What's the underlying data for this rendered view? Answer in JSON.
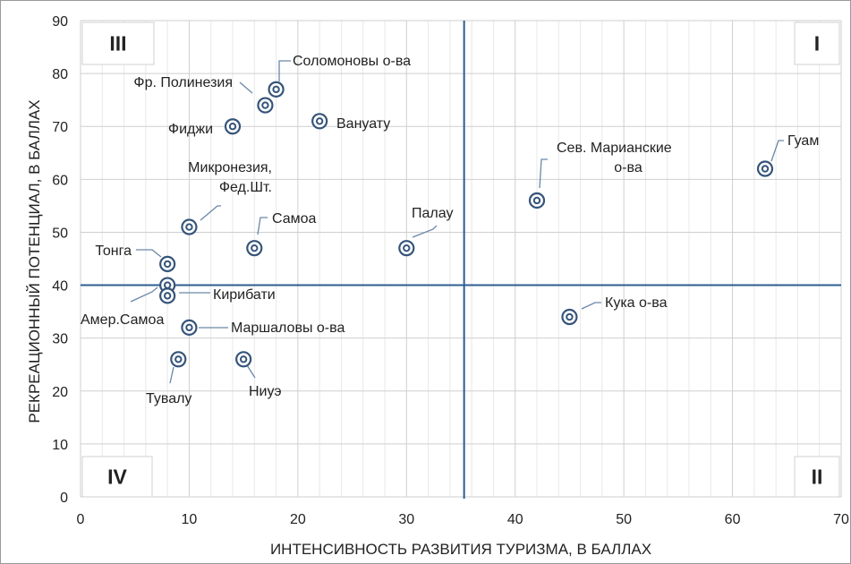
{
  "chart_data": {
    "type": "scatter",
    "title": "",
    "xlabel": "ИНТЕНСИВНОСТЬ РАЗВИТИЯ ТУРИЗМА, В БАЛЛАХ",
    "ylabel": "РЕКРЕАЦИОННЫЙ ПОТЕНЦИАЛ, В БАЛЛАХ",
    "xlim": [
      0,
      70
    ],
    "ylim": [
      0,
      90
    ],
    "x_ticks": [
      "0",
      "10",
      "20",
      "30",
      "40",
      "50",
      "60",
      "70"
    ],
    "y_ticks": [
      "0",
      "10",
      "20",
      "30",
      "40",
      "50",
      "60",
      "70",
      "80",
      "90"
    ],
    "grid": true,
    "quadrant_lines": {
      "x": 35.3,
      "y": 40
    },
    "quadrant_labels": [
      "I",
      "II",
      "III",
      "IV"
    ],
    "points": [
      {
        "label": "Соломоновы о-ва",
        "x": 18,
        "y": 77
      },
      {
        "label": "Фр. Полинезия",
        "x": 17,
        "y": 74
      },
      {
        "label": "Фиджи",
        "x": 14,
        "y": 70
      },
      {
        "label": "Вануату",
        "x": 22,
        "y": 71
      },
      {
        "label": "Микронезия, Фед.Шт.",
        "x": 10,
        "y": 51
      },
      {
        "label": "Самоа",
        "x": 16,
        "y": 47
      },
      {
        "label": "Палау",
        "x": 30,
        "y": 47
      },
      {
        "label": "Тонга",
        "x": 8,
        "y": 44
      },
      {
        "label": "Амер.Самоа",
        "x": 8,
        "y": 40
      },
      {
        "label": "Кирибати",
        "x": 8,
        "y": 38
      },
      {
        "label": "Маршаловы о-ва",
        "x": 10,
        "y": 32
      },
      {
        "label": "Тувалу",
        "x": 9,
        "y": 26
      },
      {
        "label": "Ниуэ",
        "x": 15,
        "y": 26
      },
      {
        "label": "Сев. Марианские о-ва",
        "x": 42,
        "y": 56
      },
      {
        "label": "Гуам",
        "x": 63,
        "y": 62
      },
      {
        "label": "Кука о-ва",
        "x": 45,
        "y": 34
      }
    ],
    "colors": {
      "marker": "#35547a",
      "quadrant_line": "#2e5d91",
      "grid": "#d9d9d9"
    }
  }
}
